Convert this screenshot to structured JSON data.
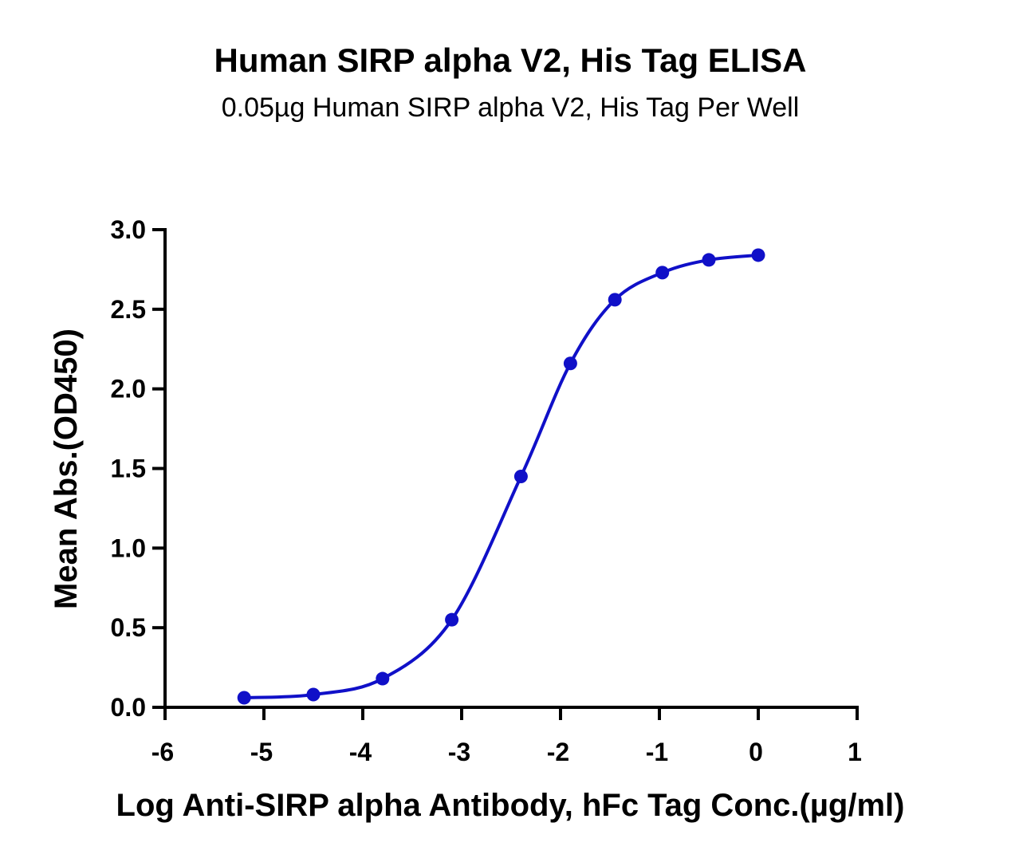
{
  "chart_data": {
    "type": "line",
    "title": "Human SIRP alpha V2, His Tag ELISA",
    "subtitle": "0.05µg Human SIRP alpha V2, His Tag Per Well",
    "xlabel": "Log Anti-SIRP alpha Antibody, hFc Tag Conc.(µg/ml)",
    "ylabel": "Mean Abs.(OD450)",
    "xlim": [
      -6,
      1
    ],
    "ylim": [
      0,
      3.0
    ],
    "xticks": [
      "-6",
      "-5",
      "-4",
      "-3",
      "-2",
      "-1",
      "0",
      "1"
    ],
    "yticks": [
      "0.0",
      "0.5",
      "1.0",
      "1.5",
      "2.0",
      "2.5",
      "3.0"
    ],
    "grid": false,
    "color": "#1010c8",
    "series": [
      {
        "points": [
          {
            "x": -5.2,
            "y": 0.06
          },
          {
            "x": -4.5,
            "y": 0.08
          },
          {
            "x": -3.8,
            "y": 0.18
          },
          {
            "x": -3.1,
            "y": 0.55
          },
          {
            "x": -2.4,
            "y": 1.45
          },
          {
            "x": -1.9,
            "y": 2.16
          },
          {
            "x": -1.45,
            "y": 2.56
          },
          {
            "x": -0.97,
            "y": 2.73
          },
          {
            "x": -0.5,
            "y": 2.81
          },
          {
            "x": 0.0,
            "y": 2.84
          }
        ]
      }
    ]
  }
}
